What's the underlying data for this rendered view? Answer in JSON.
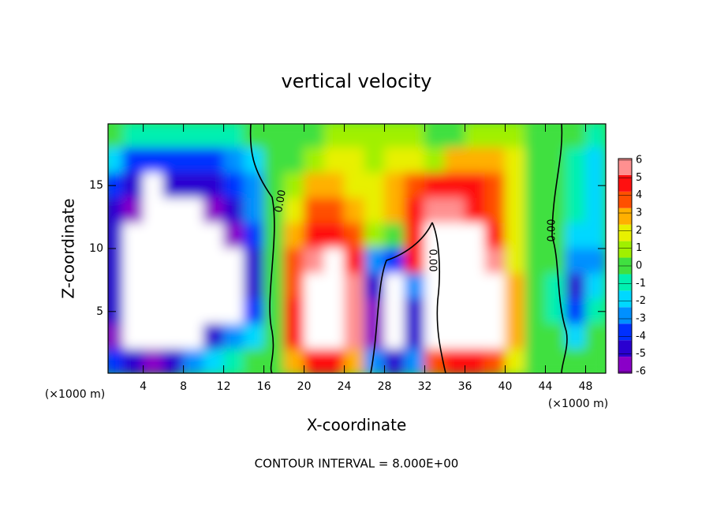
{
  "chart_data": {
    "type": "heatmap",
    "title": "vertical velocity",
    "xlabel": "X-coordinate",
    "ylabel": "Z-coordinate",
    "x_unit_label": "(×1000 m)",
    "annotation": "CONTOUR INTERVAL = 8.000E+00",
    "contour_labels": [
      "0.00",
      "0.00",
      "0.00"
    ],
    "xlim": [
      0.5,
      50
    ],
    "ylim": [
      0.1,
      19.9
    ],
    "xticks": [
      4,
      8,
      12,
      16,
      20,
      24,
      28,
      32,
      36,
      40,
      44,
      48
    ],
    "yticks": [
      5,
      10,
      15
    ],
    "x": [
      1,
      3,
      5,
      7,
      9,
      11,
      13,
      15,
      17,
      19,
      21,
      23,
      25,
      27,
      29,
      31,
      33,
      35,
      37,
      39,
      41,
      43,
      45,
      47,
      49
    ],
    "y": [
      19,
      17,
      15,
      13,
      11,
      9,
      7,
      5,
      3,
      1
    ],
    "z": [
      [
        0,
        -1,
        -1,
        -1,
        -1,
        -1,
        -1,
        0,
        0,
        0,
        0,
        1,
        1,
        1,
        1,
        1,
        0,
        0,
        1,
        1,
        1,
        0,
        0,
        0,
        -1
      ],
      [
        -2,
        -4,
        -4,
        -4,
        -4,
        -4,
        -3,
        -2,
        0,
        0,
        1,
        2,
        2,
        1,
        2,
        2,
        1,
        3,
        3,
        3,
        2,
        0,
        0,
        -1,
        -2
      ],
      [
        -4,
        -5,
        -7,
        -5,
        -5,
        -5,
        -4,
        -3,
        0,
        1,
        3,
        3,
        2,
        2,
        3,
        4,
        5,
        5,
        5,
        4,
        2,
        0,
        0,
        -1,
        -2
      ],
      [
        -5,
        -6,
        -7,
        -7,
        -7,
        -6,
        -5,
        -3,
        0,
        2,
        4,
        4,
        3,
        2,
        3,
        5,
        6,
        6,
        5,
        4,
        2,
        0,
        0,
        -1,
        -2
      ],
      [
        -5,
        -7,
        -7,
        -7,
        -7,
        -7,
        -6,
        -4,
        0,
        3,
        5,
        5,
        4,
        1,
        0,
        5,
        7,
        7,
        7,
        5,
        2,
        0,
        0,
        -2,
        -2
      ],
      [
        -5,
        -7,
        -7,
        -7,
        -7,
        -7,
        -7,
        -5,
        0,
        4,
        6,
        7,
        5,
        -3,
        -4,
        5,
        7,
        7,
        7,
        6,
        2,
        0,
        0,
        -3,
        -3
      ],
      [
        -5,
        -7,
        -7,
        -7,
        -7,
        -7,
        -7,
        -5,
        0,
        4,
        7,
        7,
        6,
        -5,
        -7,
        -3,
        7,
        7,
        7,
        7,
        3,
        0,
        -1,
        -5,
        -2
      ],
      [
        -5,
        -7,
        -7,
        -7,
        -7,
        -7,
        -7,
        -4,
        0,
        5,
        7,
        7,
        6,
        -6,
        -7,
        -5,
        7,
        7,
        7,
        7,
        3,
        0,
        -1,
        -4,
        -1
      ],
      [
        -6,
        -7,
        -7,
        -7,
        -7,
        -5,
        -3,
        -2,
        0,
        5,
        7,
        7,
        6,
        -6,
        -7,
        -5,
        7,
        7,
        7,
        7,
        3,
        0,
        0,
        -2,
        0
      ],
      [
        -4,
        -5,
        -6,
        -5,
        -3,
        -2,
        -1,
        0,
        0,
        3,
        5,
        5,
        3,
        -3,
        -5,
        -3,
        4,
        5,
        5,
        4,
        2,
        0,
        0,
        0,
        0
      ]
    ],
    "colorbar": {
      "ticks": [
        -6,
        -5,
        -4,
        -3,
        -2,
        -1,
        0,
        1,
        2,
        3,
        4,
        5,
        6
      ],
      "colors": [
        "#8a00c8",
        "#2a00d0",
        "#0030ff",
        "#0090ff",
        "#00d8ff",
        "#00f0b0",
        "#40e040",
        "#a0f000",
        "#e8f000",
        "#ffb000",
        "#ff5000",
        "#ff1010",
        "#ff9090"
      ]
    }
  }
}
